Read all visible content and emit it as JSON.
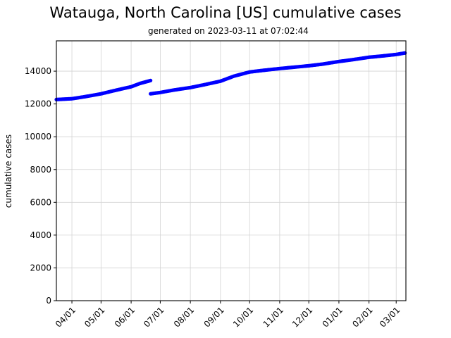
{
  "chart_data": {
    "type": "scatter",
    "title": "Watauga, North Carolina [US] cumulative cases",
    "subtitle": "generated on 2023-03-11 at 07:02:44",
    "xlabel": "",
    "ylabel": "cumulative cases",
    "ylim": [
      0,
      15850
    ],
    "xlim": [
      "2022-03-16",
      "2023-03-11"
    ],
    "grid": true,
    "legend": null,
    "color": "#0000ff",
    "yticks": [
      0,
      2000,
      4000,
      6000,
      8000,
      10000,
      12000,
      14000
    ],
    "xtick_labels": [
      "04/01",
      "05/01",
      "06/01",
      "07/01",
      "08/01",
      "09/01",
      "10/01",
      "11/01",
      "12/01",
      "01/01",
      "02/01",
      "03/01"
    ],
    "series": [
      {
        "name": "cumulative cases",
        "segments": [
          {
            "x": [
              "2022-03-16",
              "2022-04-01",
              "2022-04-15",
              "2022-05-01",
              "2022-05-15",
              "2022-06-01",
              "2022-06-10",
              "2022-06-21"
            ],
            "values": [
              12270,
              12320,
              12450,
              12620,
              12820,
              13050,
              13250,
              13430
            ]
          },
          {
            "x": [
              "2022-06-21",
              "2022-07-01",
              "2022-07-15",
              "2022-08-01",
              "2022-08-15",
              "2022-09-01",
              "2022-09-15",
              "2022-10-01",
              "2022-10-15",
              "2022-11-01",
              "2022-11-15",
              "2022-12-01",
              "2022-12-15",
              "2023-01-01",
              "2023-01-15",
              "2023-02-01",
              "2023-02-15",
              "2023-03-01",
              "2023-03-10"
            ],
            "values": [
              12620,
              12700,
              12850,
              13000,
              13170,
              13390,
              13700,
              13950,
              14050,
              14160,
              14240,
              14330,
              14430,
              14590,
              14700,
              14850,
              14930,
              15020,
              15110
            ]
          }
        ]
      }
    ]
  }
}
